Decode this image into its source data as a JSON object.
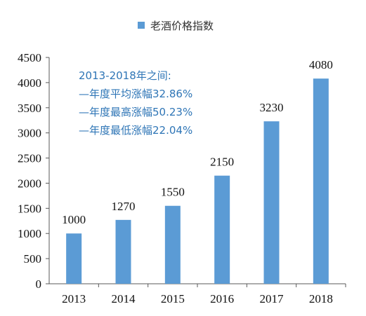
{
  "chart_data": {
    "type": "bar",
    "title": "",
    "legend": {
      "entries": [
        "老酒价格指数"
      ],
      "placement": "top"
    },
    "categories": [
      "2013",
      "2014",
      "2015",
      "2016",
      "2017",
      "2018"
    ],
    "series": [
      {
        "name": "老酒价格指数",
        "values": [
          1000,
          1270,
          1550,
          2150,
          3230,
          4080
        ]
      }
    ],
    "data_labels": [
      "1000",
      "1270",
      "1550",
      "2150",
      "3230",
      "4080"
    ],
    "ylim": [
      0,
      4500
    ],
    "yticks": [
      "0",
      "500",
      "1000",
      "1500",
      "2000",
      "2500",
      "3000",
      "3500",
      "4000",
      "4500"
    ],
    "grid": false,
    "annotations": [
      "2013-2018年之间:",
      "—年度平均涨幅32.86%",
      "—年度最高涨幅50.23%",
      "—年度最低涨幅22.04%"
    ]
  },
  "colors": {
    "bar": "#5b9bd5",
    "annotation_text": "#2e75b6",
    "axis": "#595959",
    "text": "#111111"
  }
}
